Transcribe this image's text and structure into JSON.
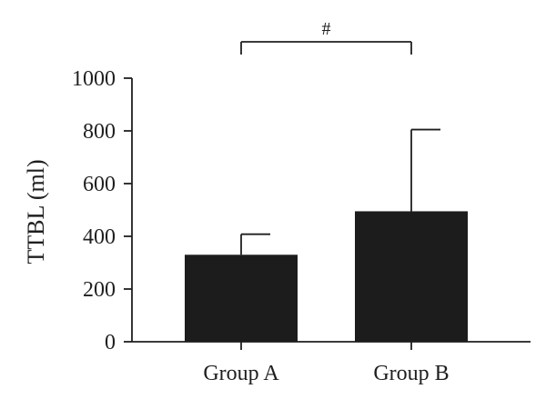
{
  "chart_data": {
    "type": "bar",
    "categories": [
      "Group A",
      "Group B"
    ],
    "values": [
      330,
      495
    ],
    "error_upper": [
      408,
      805
    ],
    "ylabel": "TTBL (ml)",
    "xlabel": "",
    "ylim": [
      0,
      1000
    ],
    "yticks": [
      0,
      200,
      400,
      600,
      800,
      1000
    ],
    "significance": {
      "from": "Group A",
      "to": "Group B",
      "label": "#"
    },
    "grid": false,
    "bar_color": "#1c1c1c",
    "axis_color": "#1f1f1f"
  }
}
